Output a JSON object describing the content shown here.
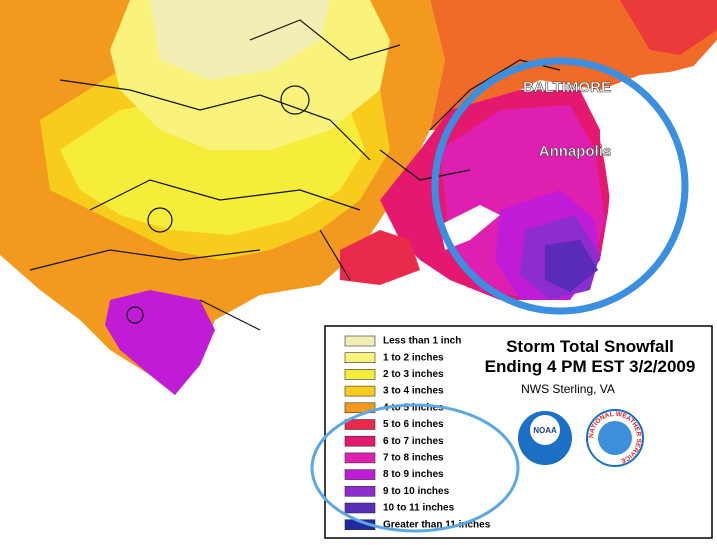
{
  "map": {
    "cities": [
      {
        "label": "BALTIMORE"
      },
      {
        "label": "Annapolis"
      }
    ],
    "legend": {
      "title": "Storm Total Snowfall",
      "subtitle": "Ending 4 PM EST 3/2/2009",
      "source": "NWS Sterling, VA",
      "logos": [
        "NOAA",
        "NATIONAL WEATHER SERVICE"
      ],
      "items": [
        {
          "label": "Less than 1 inch",
          "color": "#f3efb4"
        },
        {
          "label": "1 to 2 inches",
          "color": "#f9f37c"
        },
        {
          "label": "2 to 3 inches",
          "color": "#f6ec3a"
        },
        {
          "label": "3 to 4 inches",
          "color": "#f8cc1c"
        },
        {
          "label": "4 to 5 inches",
          "color": "#f39a1e"
        },
        {
          "label": "5 to 6 inches",
          "color": "#ea2a4c"
        },
        {
          "label": "6 to 7 inches",
          "color": "#e3186e"
        },
        {
          "label": "7 to 8 inches",
          "color": "#df1fb0"
        },
        {
          "label": "8 to 9 inches",
          "color": "#c01cd8"
        },
        {
          "label": "9 to 10 inches",
          "color": "#8d2ccf"
        },
        {
          "label": "10 to 11 inches",
          "color": "#5a2bb8"
        },
        {
          "label": "Greater than 11 inches",
          "color": "#1f2a9e"
        }
      ]
    }
  }
}
